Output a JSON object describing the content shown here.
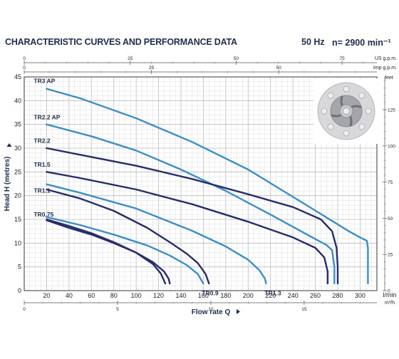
{
  "header": {
    "title": "CHARACTERISTIC CURVES AND PERFORMANCE DATA",
    "frequency": "50 Hz",
    "speed": "n= 2900 min⁻¹"
  },
  "chart_data": {
    "type": "line",
    "title": "CHARACTERISTIC CURVES AND PERFORMANCE DATA",
    "xlabel": "Flow rate Q",
    "ylabel": "Head H (metres)",
    "x_unit": "l/min",
    "x_unit_secondary": "m³/h",
    "y_unit_secondary": "feet",
    "top_unit_1": "US g.p.m.",
    "top_unit_2": "Imp g.p.m.",
    "xlim": [
      0,
      315
    ],
    "ylim": [
      0,
      45
    ],
    "grid": true,
    "xticks": [
      20,
      40,
      60,
      80,
      100,
      120,
      140,
      160,
      180,
      200,
      220,
      240,
      260,
      280,
      300
    ],
    "yticks": [
      0,
      5,
      10,
      15,
      20,
      25,
      30,
      35,
      40,
      45
    ],
    "m3h_ticks": [
      0,
      5,
      10,
      15
    ],
    "m3h_end_tick": 18,
    "feet_ticks": [
      0,
      25,
      50,
      75,
      100,
      125
    ],
    "feet_end_tick": 145,
    "usgpm_ticks": [
      0,
      25,
      50,
      75
    ],
    "usgpm_end_tick": 83,
    "impgpm_ticks": [
      0,
      25,
      50
    ],
    "impgpm_end_tick": 69,
    "series": [
      {
        "name": "TR3 AP",
        "color": "#3d8ec4",
        "points": [
          [
            20,
            42.5
          ],
          [
            50,
            40.5
          ],
          [
            100,
            36.3
          ],
          [
            150,
            31.3
          ],
          [
            200,
            25.5
          ],
          [
            250,
            18.3
          ],
          [
            290,
            12.5
          ],
          [
            300,
            11.2
          ],
          [
            306,
            10.5
          ],
          [
            307,
            9
          ],
          [
            307,
            5
          ],
          [
            307,
            1.5
          ]
        ]
      },
      {
        "name": "TR2.2 AP",
        "color": "#3d8ec4",
        "points": [
          [
            20,
            35
          ],
          [
            60,
            32.5
          ],
          [
            100,
            29.5
          ],
          [
            140,
            25.5
          ],
          [
            180,
            21
          ],
          [
            220,
            16
          ],
          [
            255,
            11.5
          ],
          [
            270,
            9.6
          ],
          [
            275,
            8.5
          ],
          [
            277,
            5
          ],
          [
            277,
            1.5
          ]
        ]
      },
      {
        "name": "TR2.2",
        "color": "#272c6a",
        "points": [
          [
            20,
            30
          ],
          [
            50,
            28.6
          ],
          [
            100,
            26.3
          ],
          [
            150,
            23.5
          ],
          [
            200,
            20.3
          ],
          [
            240,
            17.6
          ],
          [
            265,
            15
          ],
          [
            275,
            12.5
          ],
          [
            279,
            9
          ],
          [
            280,
            5
          ],
          [
            280,
            1.5
          ]
        ]
      },
      {
        "name": "TR1.5",
        "color": "#272c6a",
        "points": [
          [
            20,
            25
          ],
          [
            50,
            23.7
          ],
          [
            100,
            21.3
          ],
          [
            150,
            18.2
          ],
          [
            200,
            14.5
          ],
          [
            240,
            11.2
          ],
          [
            260,
            9
          ],
          [
            268,
            7
          ],
          [
            271,
            4
          ],
          [
            271,
            1.5
          ]
        ]
      },
      {
        "name": "TR1.3",
        "color": "#3d8ec4",
        "points": [
          [
            20,
            22.4
          ],
          [
            50,
            20.6
          ],
          [
            100,
            17.3
          ],
          [
            150,
            12.6
          ],
          [
            180,
            9.3
          ],
          [
            200,
            6.5
          ],
          [
            210,
            4.3
          ],
          [
            215,
            2.5
          ],
          [
            216,
            1.5
          ]
        ]
      },
      {
        "name": "TR1.1",
        "color": "#272c6a",
        "points": [
          [
            20,
            21.3
          ],
          [
            50,
            19.4
          ],
          [
            80,
            16.8
          ],
          [
            110,
            13.2
          ],
          [
            130,
            10.2
          ],
          [
            145,
            7.8
          ],
          [
            155,
            5.8
          ],
          [
            162,
            3.5
          ],
          [
            165,
            1.5
          ]
        ]
      },
      {
        "name": "TR0.9",
        "color": "#3d8ec4",
        "points": [
          [
            20,
            15.5
          ],
          [
            50,
            13.8
          ],
          [
            80,
            11.8
          ],
          [
            110,
            9.5
          ],
          [
            130,
            7.4
          ],
          [
            145,
            5.4
          ],
          [
            155,
            3.5
          ],
          [
            160,
            1.5
          ]
        ]
      },
      {
        "name": "TR0.75",
        "color": "#272c6a",
        "points": [
          [
            20,
            14.8
          ],
          [
            40,
            13.2
          ],
          [
            60,
            11.8
          ],
          [
            80,
            10
          ],
          [
            100,
            8
          ],
          [
            115,
            6
          ],
          [
            125,
            4
          ],
          [
            129,
            2.5
          ],
          [
            130,
            1.5
          ]
        ]
      },
      {
        "name": "",
        "color": "#272c6a",
        "points": [
          [
            20,
            15
          ],
          [
            40,
            13.6
          ],
          [
            60,
            12.1
          ],
          [
            80,
            10.2
          ],
          [
            100,
            8
          ],
          [
            115,
            5.6
          ],
          [
            122,
            3.6
          ],
          [
            126,
            1.5
          ]
        ]
      }
    ],
    "labels": [
      {
        "text": "TR3 AP",
        "x": 20,
        "y": 43.7
      },
      {
        "text": "TR2.2 AP",
        "x": 20,
        "y": 36.1
      },
      {
        "text": "TR2.2",
        "x": 20,
        "y": 31.1
      },
      {
        "text": "TR1.5",
        "x": 20,
        "y": 26.1
      },
      {
        "text": "TR1.1",
        "x": 20,
        "y": 20.6
      },
      {
        "text": "TR0.75",
        "x": 20,
        "y": 15.6
      },
      {
        "text": "TR0.9",
        "x": 160,
        "y": 0.4
      },
      {
        "text": "TR1.3",
        "x": 216,
        "y": 0.4
      }
    ]
  },
  "impeller_image": {
    "name": "impeller-photo",
    "colors": {
      "outer": "#d8d8db",
      "ring": "#a4a6ab",
      "hub": "#c8c9cc",
      "center": "#f0ede8"
    }
  }
}
